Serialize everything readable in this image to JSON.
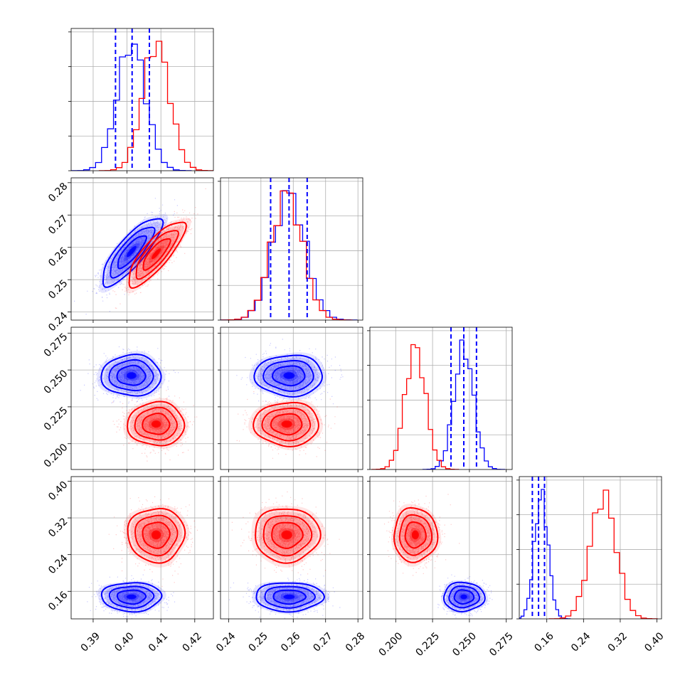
{
  "chart_data": {
    "type": "corner",
    "grid": true,
    "parameters": [
      {
        "ticks": [
          0.39,
          0.4,
          0.41,
          0.42
        ],
        "tick_labels": [
          "0.39",
          "0.40",
          "0.41",
          "0.42"
        ],
        "range": [
          0.3835,
          0.4255
        ]
      },
      {
        "ticks": [
          0.24,
          0.25,
          0.26,
          0.27,
          0.28
        ],
        "tick_labels": [
          "0.24",
          "0.25",
          "0.26",
          "0.27",
          "0.28"
        ],
        "range": [
          0.2375,
          0.2815
        ]
      },
      {
        "ticks": [
          0.2,
          0.225,
          0.25,
          0.275
        ],
        "tick_labels": [
          "0.200",
          "0.225",
          "0.250",
          "0.275"
        ],
        "range": [
          0.1825,
          0.279
        ]
      },
      {
        "ticks": [
          0.16,
          0.24,
          0.32,
          0.4
        ],
        "tick_labels": [
          "0.16",
          "0.24",
          "0.32",
          "0.40"
        ],
        "range": [
          0.1,
          0.41
        ]
      }
    ],
    "series": [
      {
        "color": "#0000ff",
        "means": [
          0.4013,
          0.2587,
          0.2462,
          0.148
        ],
        "sds": [
          0.0042,
          0.005,
          0.0066,
          0.015
        ],
        "correlations": [
          [
            0,
            1,
            0.82
          ]
        ],
        "quantiles": [
          [
            0.3966,
            0.4015,
            0.4066
          ],
          [
            0.253,
            0.2587,
            0.2643
          ],
          [
            0.2375,
            0.2462,
            0.2548
          ],
          [
            0.1285,
            0.142,
            0.155
          ]
        ]
      },
      {
        "color": "#ff0000",
        "means": [
          0.4086,
          0.258,
          0.2133,
          0.283
        ],
        "sds": [
          0.004,
          0.0048,
          0.007,
          0.028
        ],
        "correlations": [
          [
            0,
            1,
            0.82
          ]
        ]
      }
    ],
    "quantile_line_style": "dashed",
    "quantile_line_color": "#0000ff"
  }
}
